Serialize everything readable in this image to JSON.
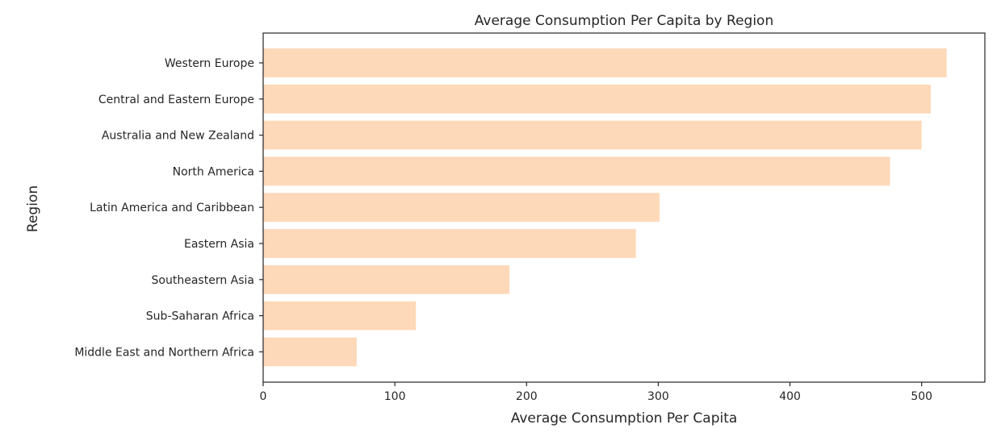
{
  "chart_data": {
    "type": "bar",
    "orientation": "horizontal",
    "title": "Average Consumption Per Capita by Region",
    "xlabel": "Average Consumption Per Capita",
    "ylabel": "Region",
    "categories": [
      "Western Europe",
      "Central and Eastern Europe",
      "Australia and New Zealand",
      "North America",
      "Latin America and Caribbean",
      "Eastern Asia",
      "Southeastern Asia",
      "Sub-Saharan Africa",
      "Middle East and Northern Africa"
    ],
    "values": [
      519,
      507,
      500,
      476,
      301,
      283,
      187,
      116,
      71
    ],
    "xlim": [
      0,
      548
    ],
    "xticks": [
      0,
      100,
      200,
      300,
      400,
      500
    ],
    "bar_color": "#fdd9b9",
    "axis_color": "#262626",
    "grid": false,
    "legend": false
  }
}
